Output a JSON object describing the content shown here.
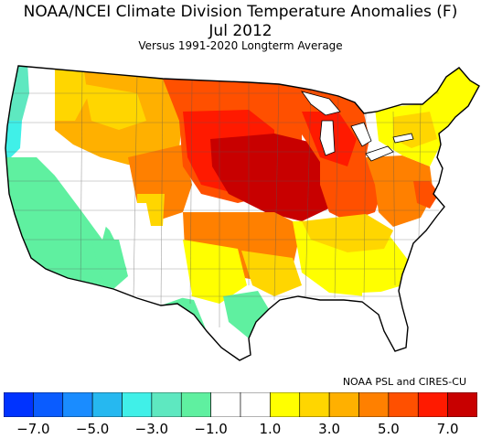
{
  "header": {
    "title": "NOAA/NCEI Climate Division Temperature Anomalies (F)",
    "period": "Jul 2012",
    "baseline": "Versus 1991-2020 Longterm Average"
  },
  "credit": "NOAA PSL and CIRES-CU",
  "legend": {
    "bins": [
      {
        "range": "< -7.0",
        "color": "#0033ff"
      },
      {
        "range": "-7.0 to -6.0",
        "color": "#0a5cff"
      },
      {
        "range": "-6.0 to -5.0",
        "color": "#1a8cff"
      },
      {
        "range": "-5.0 to -4.0",
        "color": "#26b8f0"
      },
      {
        "range": "-4.0 to -3.0",
        "color": "#40f0e8"
      },
      {
        "range": "-3.0 to -2.0",
        "color": "#5ee8c0"
      },
      {
        "range": "-2.0 to -1.0",
        "color": "#5ff0a0"
      },
      {
        "range": "-1.0 to 0.0",
        "color": "#ffffff"
      },
      {
        "range": "0.0 to 1.0",
        "color": "#ffffff"
      },
      {
        "range": "1.0 to 2.0",
        "color": "#ffff00"
      },
      {
        "range": "2.0 to 3.0",
        "color": "#ffd600"
      },
      {
        "range": "3.0 to 4.0",
        "color": "#ffb000"
      },
      {
        "range": "4.0 to 5.0",
        "color": "#ff8000"
      },
      {
        "range": "5.0 to 6.0",
        "color": "#ff5000"
      },
      {
        "range": "6.0 to 7.0",
        "color": "#ff1a00"
      },
      {
        "range": "> 7.0",
        "color": "#c80000"
      }
    ],
    "tick_labels": [
      "−7.0",
      "−5.0",
      "−3.0",
      "−1.0",
      "1.0",
      "3.0",
      "5.0",
      "7.0"
    ]
  },
  "map": {
    "region": "Contiguous United States",
    "variable": "Temperature anomaly",
    "units": "F",
    "regions": [
      {
        "area": "Pacific Northwest coast",
        "anomaly_bin": "-3.0 to -2.0"
      },
      {
        "area": "California",
        "anomaly_bin": "-2.0 to -1.0"
      },
      {
        "area": "Nevada / Great Basin",
        "anomaly_bin": "-2.0 to -1.0"
      },
      {
        "area": "Arizona",
        "anomaly_bin": "-2.0 to -1.0"
      },
      {
        "area": "South Texas",
        "anomaly_bin": "-2.0 to -1.0"
      },
      {
        "area": "Utah / New Mexico / Florida / Gulf Coast",
        "anomaly_bin": "-1.0 to 1.0"
      },
      {
        "area": "Northern Rockies",
        "anomaly_bin": "2.0 to 4.0"
      },
      {
        "area": "Wyoming / Colorado",
        "anomaly_bin": "4.0 to 5.0"
      },
      {
        "area": "Northern and Central Plains",
        "anomaly_bin": "5.0 to 7.0"
      },
      {
        "area": "Nebraska / Iowa / Illinois / Missouri",
        "anomaly_bin": "> 7.0"
      },
      {
        "area": "Great Lakes / Ohio Valley",
        "anomaly_bin": "5.0 to 7.0"
      },
      {
        "area": "Southeast",
        "anomaly_bin": "1.0 to 3.0"
      },
      {
        "area": "Mid-Atlantic",
        "anomaly_bin": "3.0 to 5.0"
      },
      {
        "area": "New England",
        "anomaly_bin": "1.0 to 3.0"
      }
    ]
  }
}
